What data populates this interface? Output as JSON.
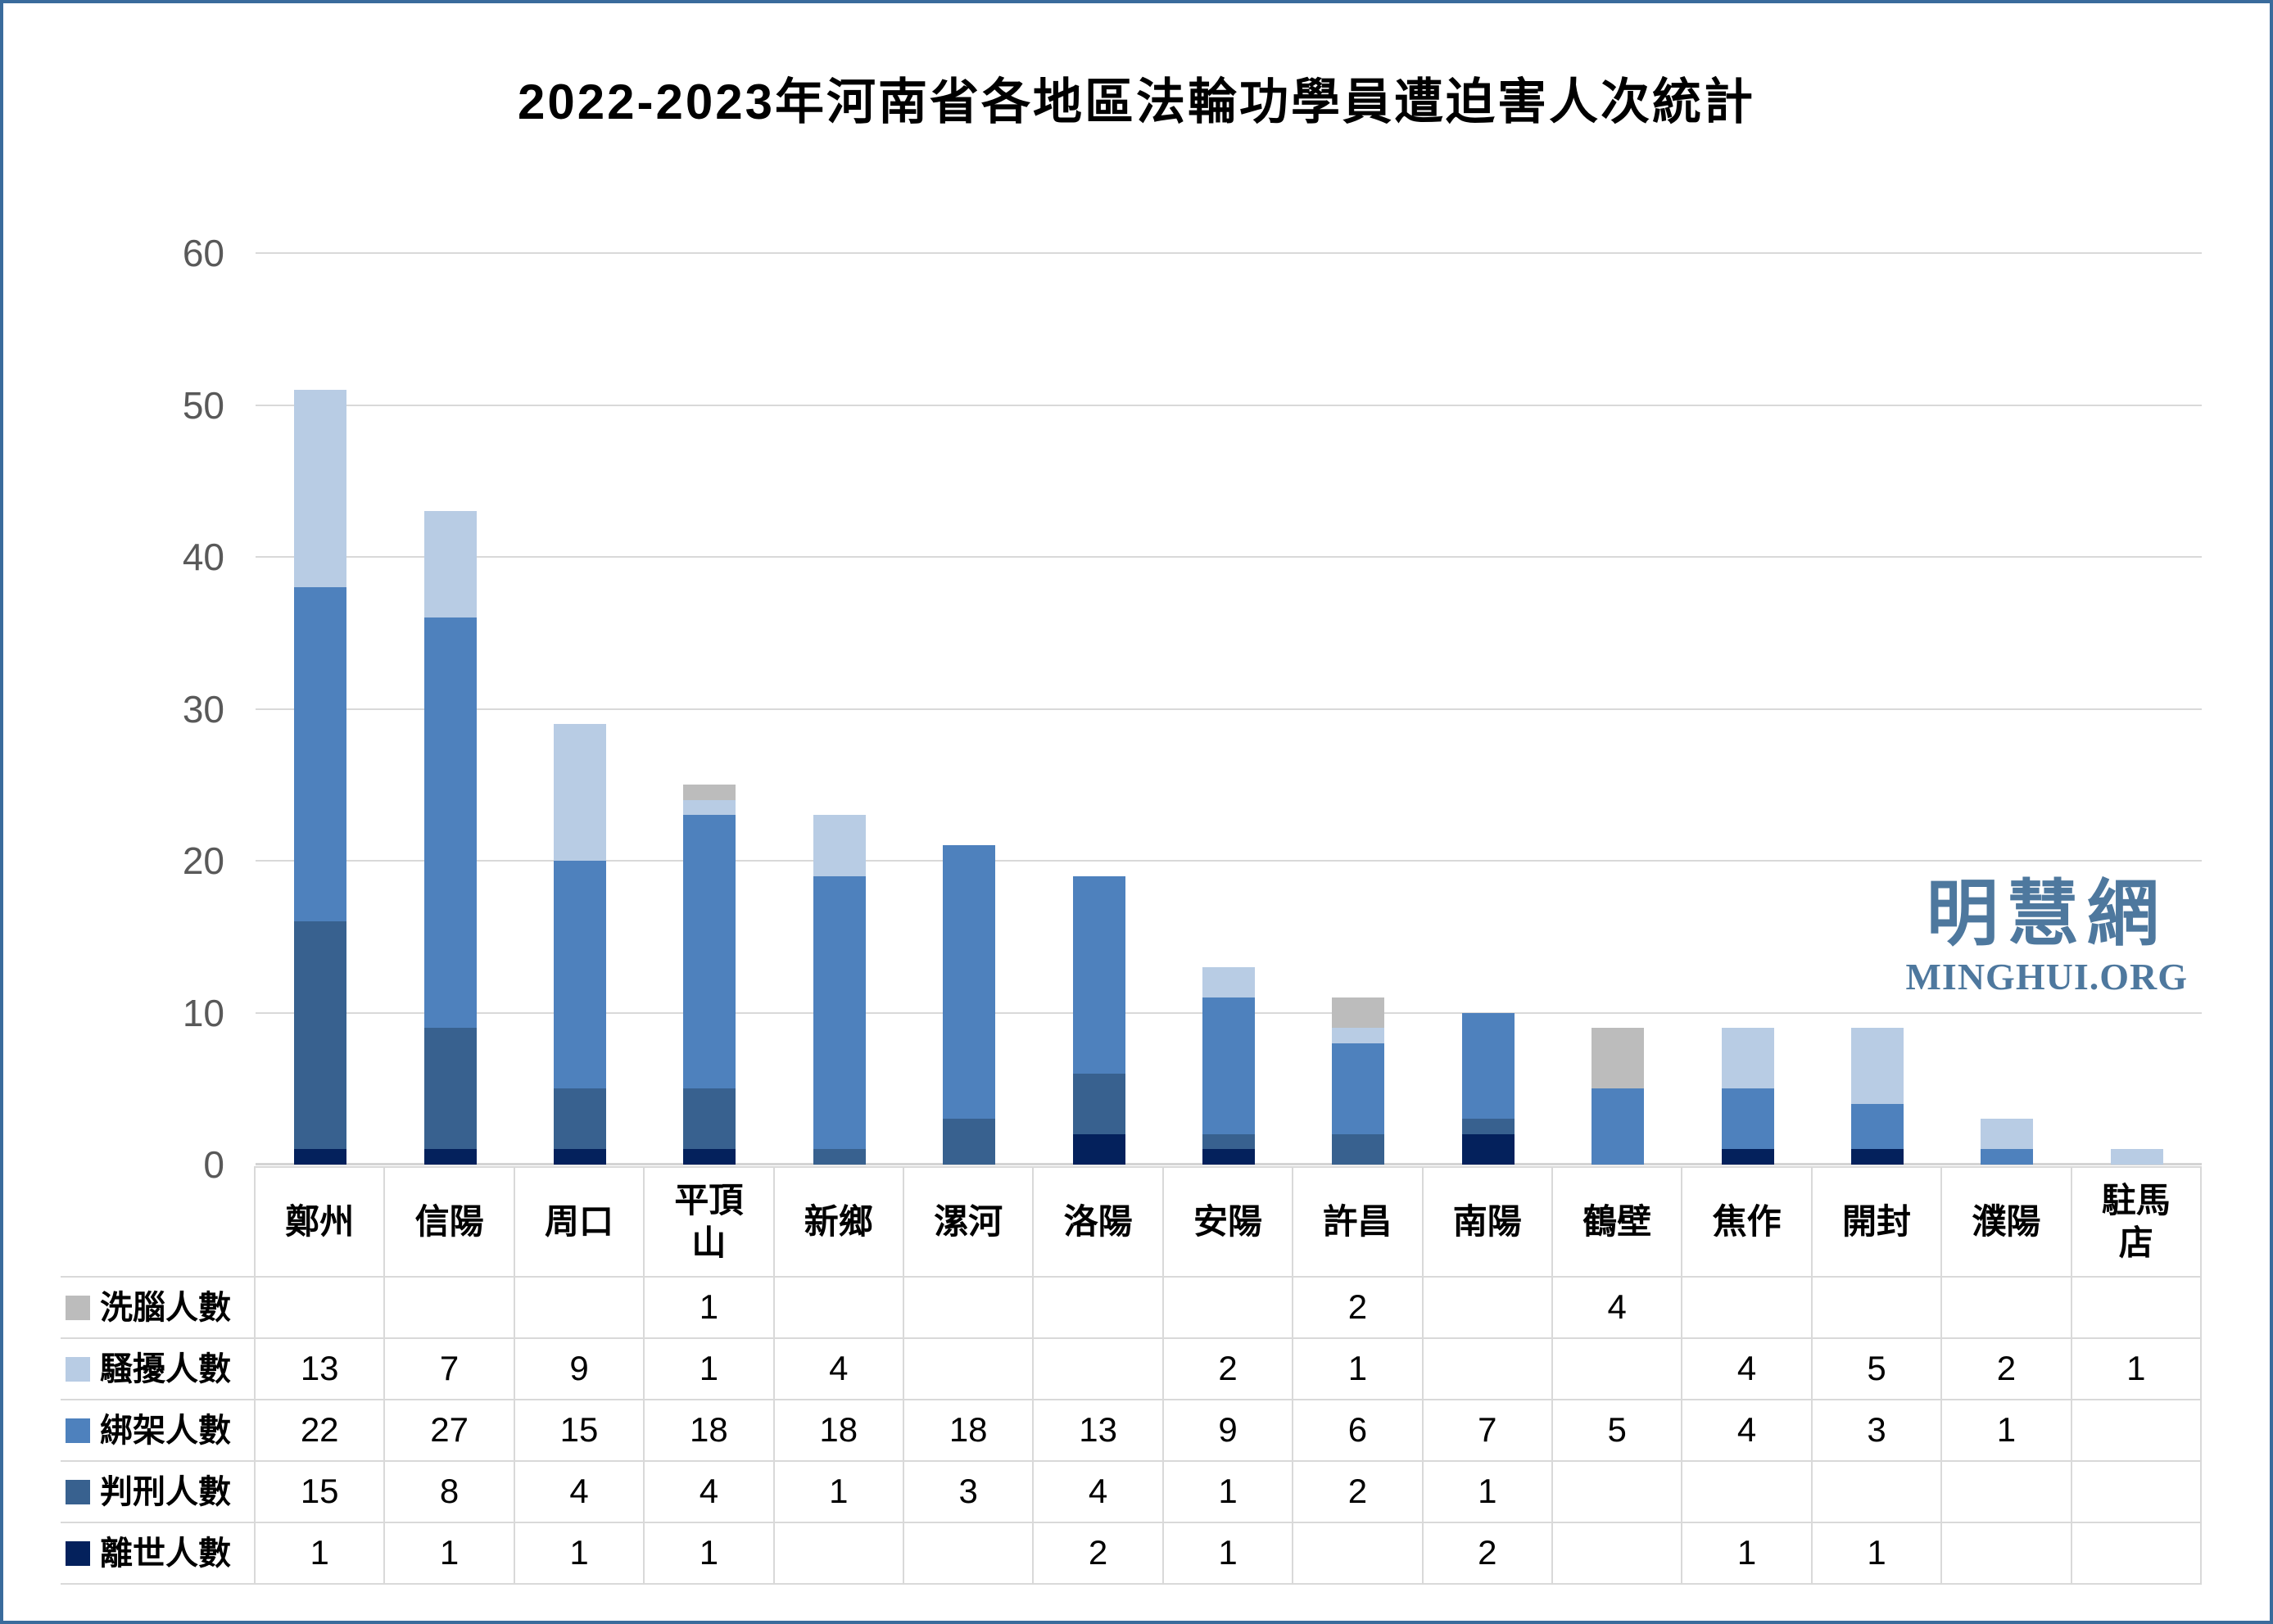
{
  "page": {
    "border_color": "#3A6B9C",
    "background": "#FFFFFF"
  },
  "title": "2022-2023年河南省各地區法輪功學員遭迫害人次統計",
  "watermark": {
    "cjk": "明慧網",
    "latin": "MINGHUI.ORG",
    "color": "#4E789E"
  },
  "axis": {
    "tick_color": "#595959",
    "grid_color": "#D9D9D9"
  },
  "table": {
    "corner_label": ""
  },
  "chart_data": {
    "type": "bar",
    "stacked": true,
    "title": "2022-2023年河南省各地區法輪功學員遭迫害人次統計",
    "categories": [
      "鄭州",
      "信陽",
      "周口",
      "平頂山",
      "新鄉",
      "漯河",
      "洛陽",
      "安陽",
      "許昌",
      "南陽",
      "鶴壁",
      "焦作",
      "開封",
      "濮陽",
      "駐馬店"
    ],
    "series": [
      {
        "name": "洗腦人數",
        "color": "#BCBCBC",
        "values": [
          0,
          0,
          0,
          1,
          0,
          0,
          0,
          0,
          2,
          0,
          4,
          0,
          0,
          0,
          0
        ]
      },
      {
        "name": "騷擾人數",
        "color": "#B8CCE4",
        "values": [
          13,
          7,
          9,
          1,
          4,
          0,
          0,
          2,
          1,
          0,
          0,
          4,
          5,
          2,
          1
        ]
      },
      {
        "name": "綁架人數",
        "color": "#4E81BD",
        "values": [
          22,
          27,
          15,
          18,
          18,
          18,
          13,
          9,
          6,
          7,
          5,
          4,
          3,
          1,
          0
        ]
      },
      {
        "name": "判刑人數",
        "color": "#38618F",
        "values": [
          15,
          8,
          4,
          4,
          1,
          3,
          4,
          1,
          2,
          1,
          0,
          0,
          0,
          0,
          0
        ]
      },
      {
        "name": "離世人數",
        "color": "#04215C",
        "values": [
          1,
          1,
          1,
          1,
          0,
          0,
          2,
          1,
          0,
          2,
          0,
          1,
          1,
          0,
          0
        ]
      }
    ],
    "stack_order_bottom_to_top": [
      "離世人數",
      "判刑人數",
      "綁架人數",
      "騷擾人數",
      "洗腦人數"
    ],
    "totals": [
      51,
      43,
      29,
      25,
      23,
      21,
      19,
      13,
      11,
      10,
      9,
      9,
      9,
      3,
      1
    ],
    "ylim": [
      0,
      60
    ],
    "ytick_step": 10,
    "grid": true,
    "legend_position": "table-row-labels"
  }
}
